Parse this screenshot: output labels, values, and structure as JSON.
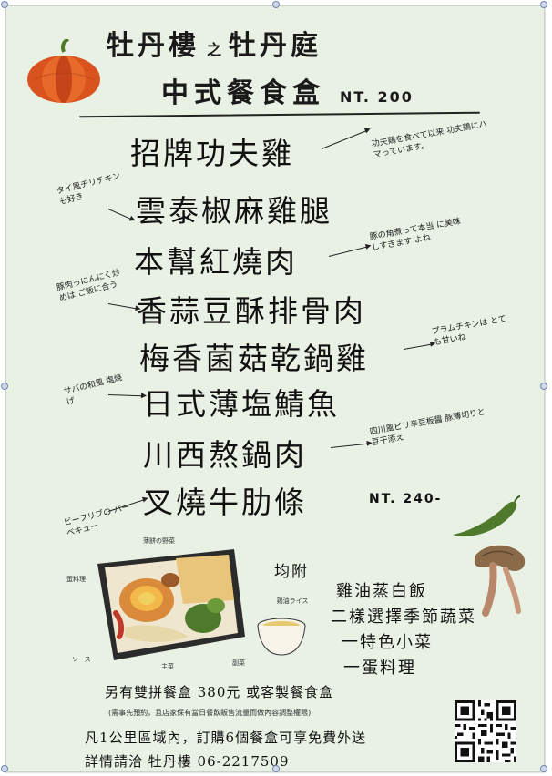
{
  "title": {
    "line1_left": "牡丹樓",
    "line1_connector": "之",
    "line1_right": "牡丹庭",
    "line2": "中式餐食盒",
    "price": "NT. 200"
  },
  "dishes": [
    {
      "name": "招牌功夫雞",
      "note": "功夫鶏を食べて以来 功夫鶏にハマっています。"
    },
    {
      "name": "雲泰椒麻雞腿",
      "note": "タイ風チリチキン も好き"
    },
    {
      "name": "本幫紅燒肉",
      "note": "豚の角煮って本当 に美味しすぎます よね"
    },
    {
      "name": "香蒜豆酥排骨肉",
      "note": "豚肉っにんにく炒めは ご飯に合う"
    },
    {
      "name": "梅香菌菇乾鍋雞",
      "note": "プラムチキンは とても甘いね"
    },
    {
      "name": "日式薄塩鯖魚",
      "note": "サバの和風 塩焼げ"
    },
    {
      "name": "川西熬鍋肉",
      "note": "四川風ピリ辛豆板醤 豚薄切りと豆干添え"
    },
    {
      "name": "叉燒牛肋條",
      "note": "ビーフリブの バーベキュー",
      "price": "NT. 240-"
    }
  ],
  "box_labels": [
    "薄餅の野菜",
    "蛋料理",
    "ソース",
    "主菜",
    "副菜",
    "鶏油ライス"
  ],
  "includes": {
    "header": "均附",
    "items": [
      "雞油蒸白飯",
      "二樣選擇季節蔬菜",
      "一特色小菜",
      "一蛋料理"
    ]
  },
  "footer": {
    "line1": "另有雙拼餐盒 380元 或客製餐食盒",
    "line2": "(需事先預約，且店家保有當日餐飲販售流量而做內容調整權限)",
    "line3": "凡1公里區域內，訂購6個餐盒可享免費外送",
    "line4": "詳情請洽 牡丹樓 06-2217509"
  },
  "colors": {
    "background": "#e8f1e4",
    "ink": "#111111",
    "pumpkin": "#d9531e",
    "leaf": "#4f7a2c"
  },
  "icons": [
    "pumpkin-icon",
    "chili-pepper-icon",
    "mushroom-icon",
    "lunchbox-illustration",
    "rice-cup-icon",
    "qr-code-icon"
  ]
}
